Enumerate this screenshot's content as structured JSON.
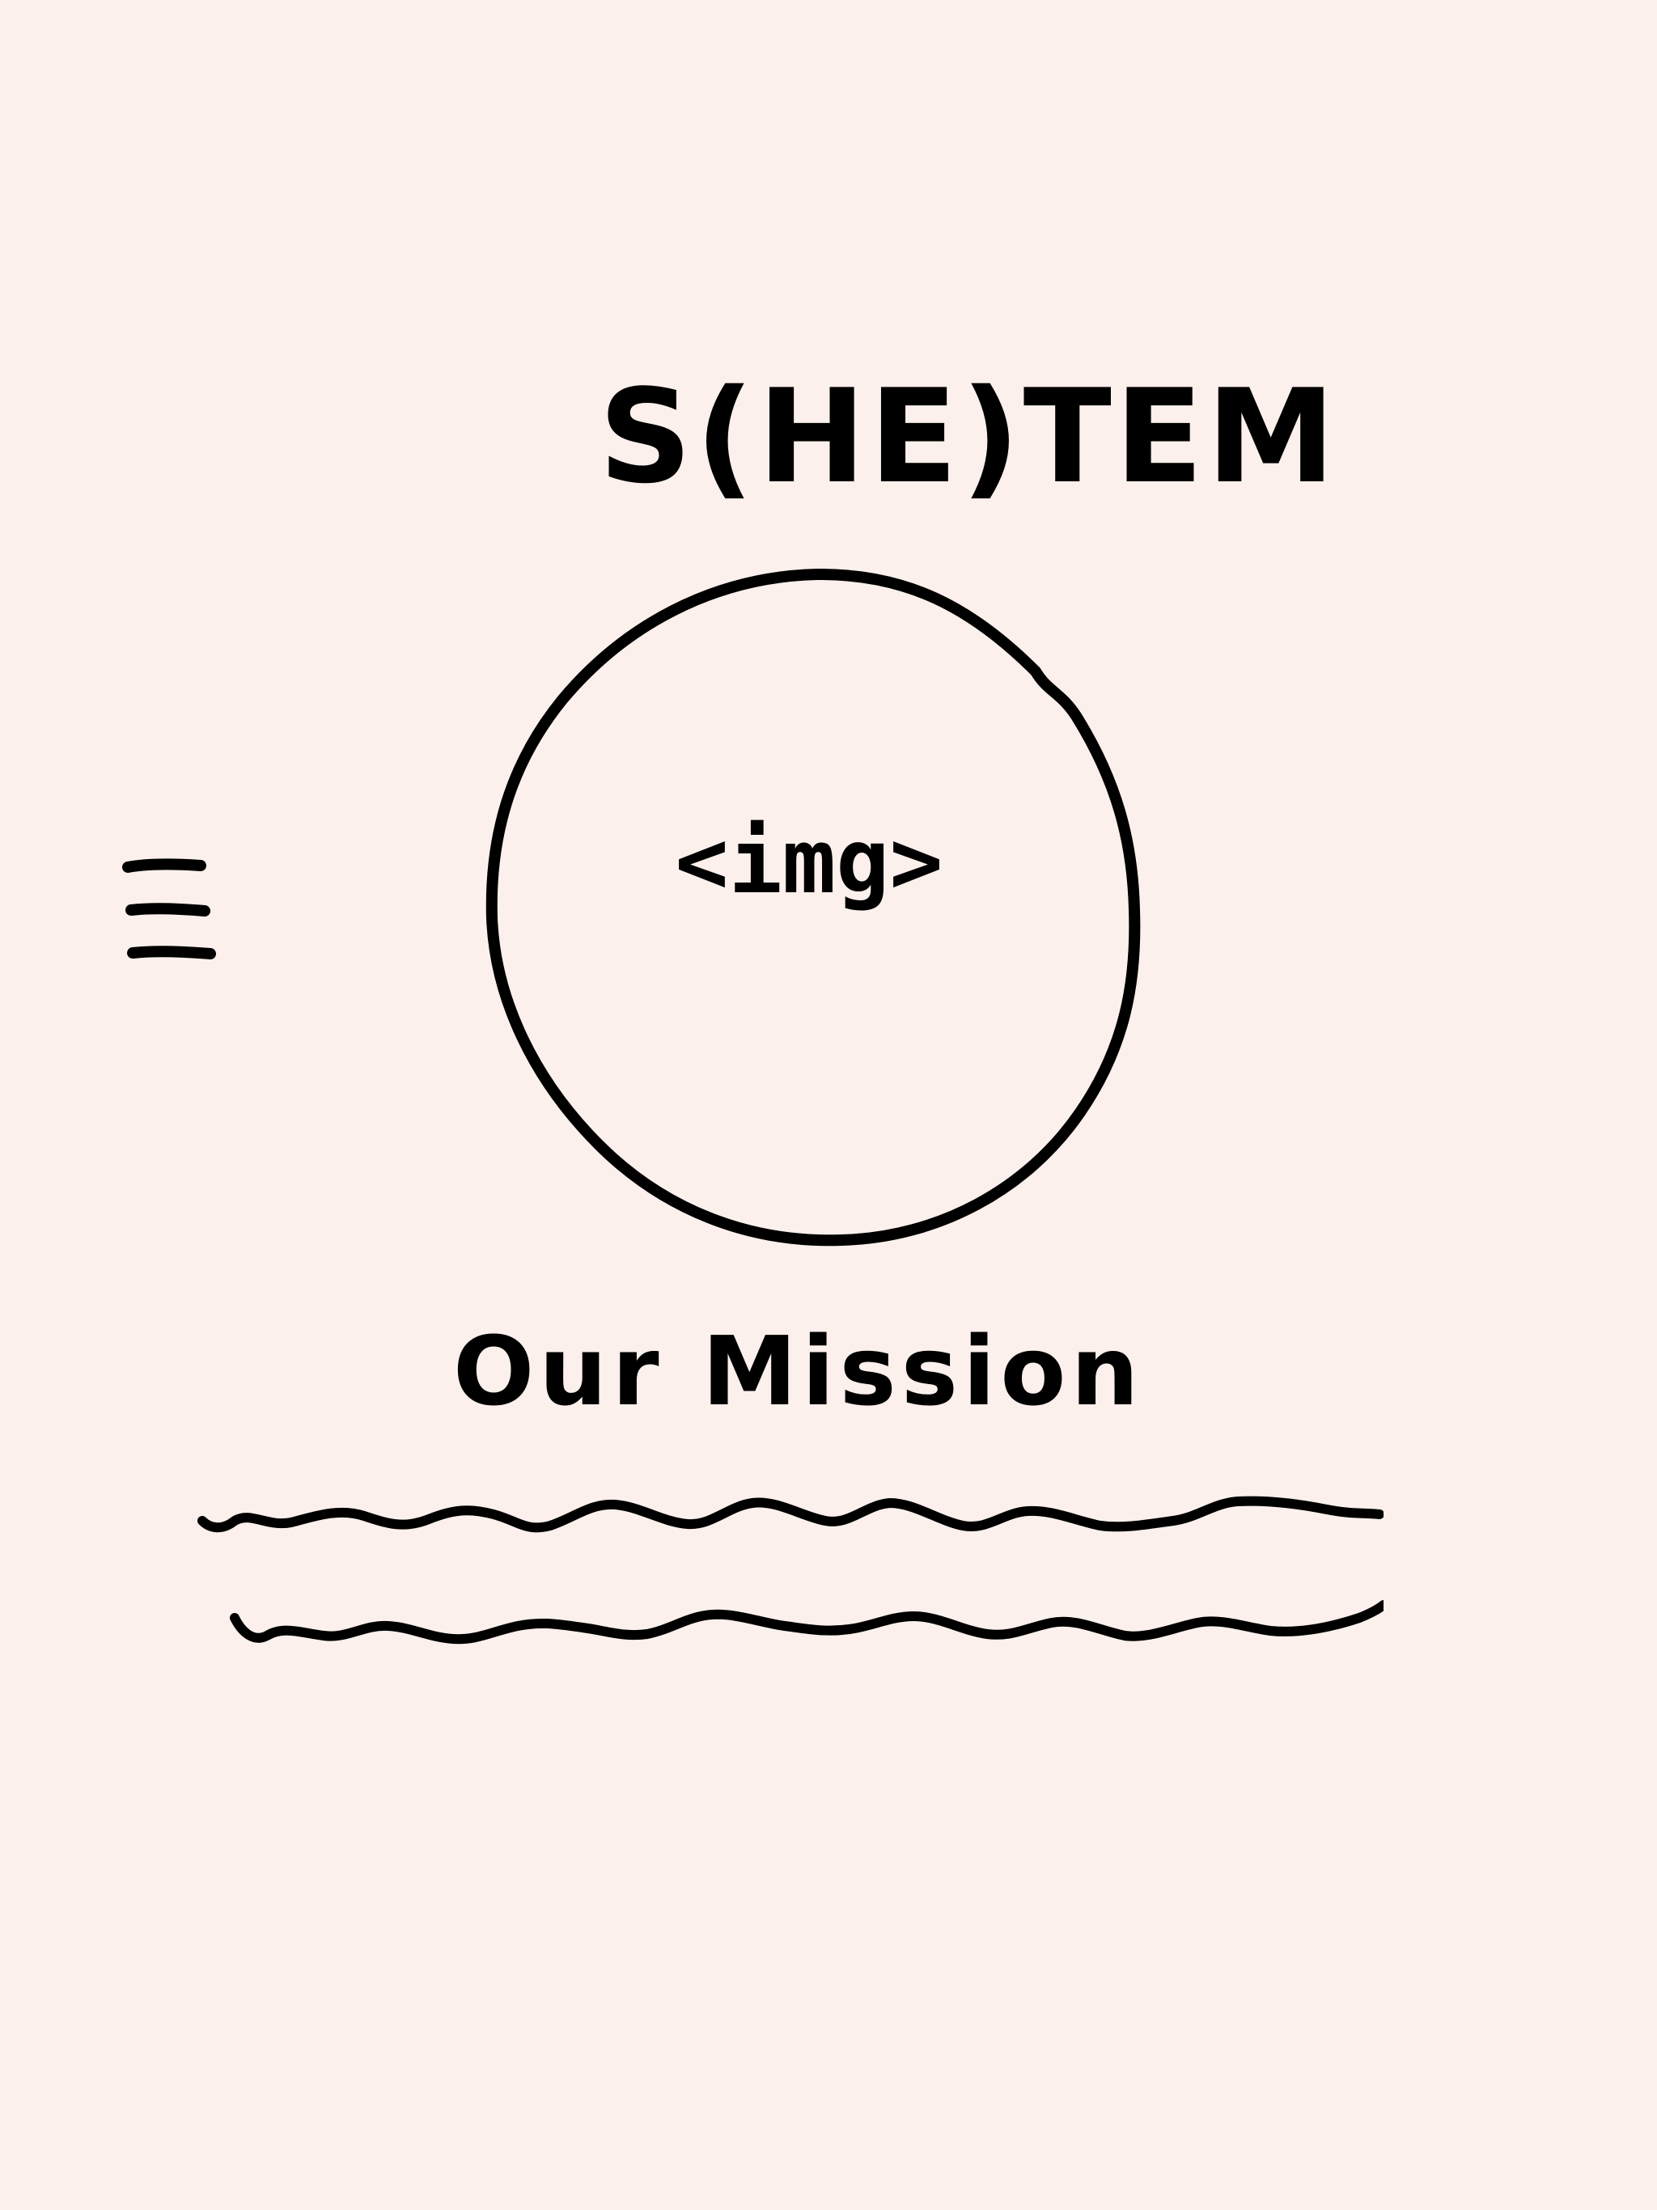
{
  "header": {
    "brand_title": "S(HE)TEM",
    "menu_icon": "hamburger-menu-icon"
  },
  "hero": {
    "image_placeholder_label": "<img>"
  },
  "mission": {
    "heading": "Our Mission",
    "text_placeholder": "squiggle-text-lines"
  },
  "colors": {
    "background": "#fbf0eb",
    "ink": "#000000"
  }
}
